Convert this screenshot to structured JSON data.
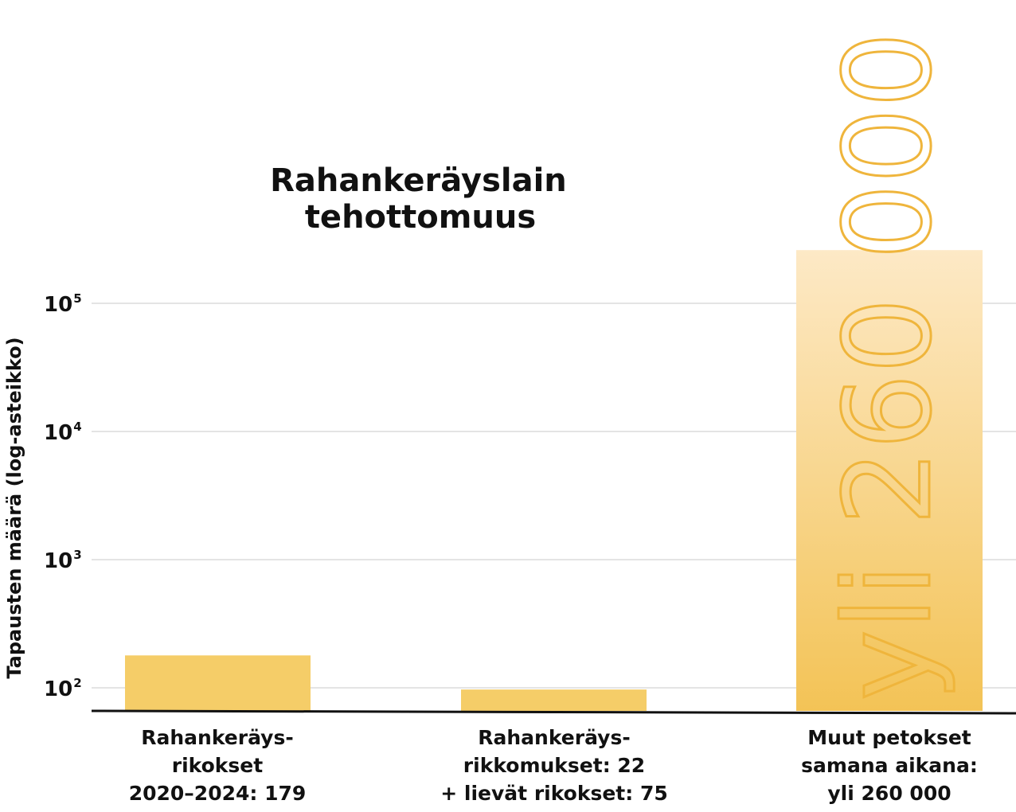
{
  "chart_data": {
    "type": "bar",
    "title": [
      "Rahankeräyslain",
      "tehottomuus"
    ],
    "ylabel": "Tapausten määrä (log-asteikko)",
    "yscale": "log",
    "ylim": [
      80,
      1000000
    ],
    "yticks": [
      {
        "value": 100,
        "base": "10",
        "exp": "2"
      },
      {
        "value": 1000,
        "base": "10",
        "exp": "3"
      },
      {
        "value": 10000,
        "base": "10",
        "exp": "4"
      },
      {
        "value": 100000,
        "base": "10",
        "exp": "5"
      }
    ],
    "grid": true,
    "categories": [
      [
        "Rahankeräys-",
        "rikokset",
        "2020–2024: 179"
      ],
      [
        "Rahankeräys-",
        "rikkomukset: 22",
        "+ lievät rikokset: 75"
      ],
      [
        "Muut petokset",
        "samana aikana:",
        "yli 260 000"
      ]
    ],
    "values": [
      179,
      97,
      260000
    ],
    "bar_annotation": "yli 260 000",
    "colors": {
      "bar": "#f5cd68",
      "gradient_top": "#fde9c6",
      "gradient_bottom": "#f3c356",
      "annotation_stroke": "#efb53c",
      "grid": "#c8c8c8",
      "axis": "#111111"
    }
  }
}
